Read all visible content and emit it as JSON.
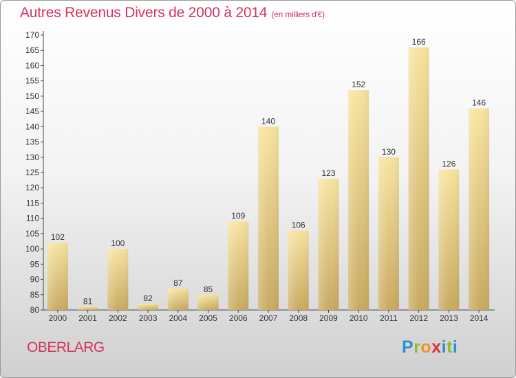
{
  "title": "Autres Revenus Divers de 2000 à 2014",
  "subtitle": "(en milliers d'€)",
  "commune": "OBERLARG",
  "logo": {
    "p": "P",
    "r": "r",
    "o": "o",
    "x": "x",
    "i": "i",
    "t": "t",
    "i2": "i"
  },
  "colors": {
    "title": "#d4345d",
    "bar_light": "#f7e3a0",
    "bar_dark": "#c8aa62"
  },
  "chart_data": {
    "type": "bar",
    "title": "Autres Revenus Divers de 2000 à 2014",
    "subtitle": "(en milliers d'€)",
    "xlabel": "",
    "ylabel": "",
    "categories": [
      "2000",
      "2001",
      "2002",
      "2003",
      "2004",
      "2005",
      "2006",
      "2007",
      "2008",
      "2009",
      "2010",
      "2011",
      "2012",
      "2013",
      "2014"
    ],
    "values": [
      102,
      81,
      100,
      82,
      87,
      85,
      109,
      140,
      106,
      123,
      152,
      130,
      166,
      126,
      146
    ],
    "ylim": [
      80,
      170
    ],
    "ytick_step": 5,
    "grid": false,
    "legend": "none"
  }
}
